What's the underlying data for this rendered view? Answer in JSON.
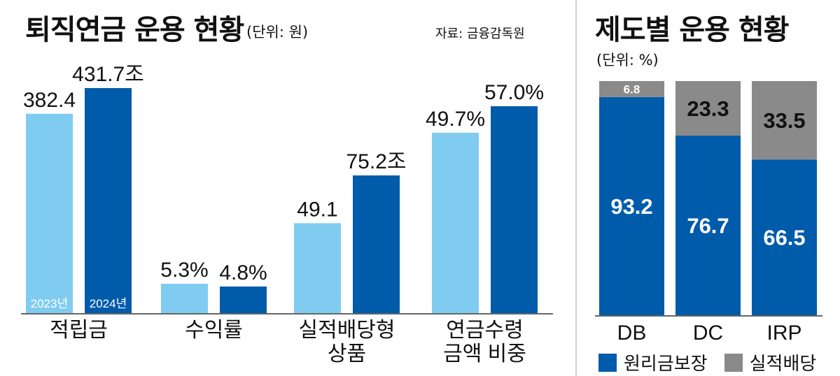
{
  "left_panel": {
    "title": "퇴직연금 운용 현황",
    "unit": "(단위: 원)",
    "source": "자료: 금융감독원"
  },
  "right_panel": {
    "title": "제도별 운용 현황",
    "unit": "(단위: %)"
  },
  "colors": {
    "light_blue": "#80ccf0",
    "dark_blue": "#005bab",
    "gray": "#8a8a8a"
  },
  "chart_data": [
    {
      "type": "bar",
      "title": "퇴직연금 운용 현황",
      "unit": "(단위: 원)",
      "groups": [
        {
          "category": [
            "적립금"
          ],
          "values": [
            382.4,
            431.7
          ],
          "labels": [
            "382.4",
            "431.7조"
          ]
        },
        {
          "category": [
            "수익률"
          ],
          "values": [
            5.3,
            4.8
          ],
          "labels": [
            "5.3%",
            "4.8%"
          ]
        },
        {
          "category": [
            "실적배당형",
            "상품"
          ],
          "values": [
            49.1,
            75.2
          ],
          "labels": [
            "49.1",
            "75.2조"
          ]
        },
        {
          "category": [
            "연금수령",
            "금액 비중"
          ],
          "values": [
            49.7,
            57.0
          ],
          "labels": [
            "49.7%",
            "57.0%"
          ]
        }
      ],
      "series": [
        {
          "name": "2023년",
          "color": "#80ccf0"
        },
        {
          "name": "2024년",
          "color": "#005bab"
        }
      ]
    },
    {
      "type": "bar",
      "stacked": true,
      "title": "제도별 운용 현황",
      "unit": "(단위: %)",
      "categories": [
        "DB",
        "DC",
        "IRP"
      ],
      "series": [
        {
          "name": "원리금보장",
          "color": "#005bab",
          "values": [
            93.2,
            76.7,
            66.5
          ]
        },
        {
          "name": "실적배당",
          "color": "#8a8a8a",
          "values": [
            6.8,
            23.3,
            33.5
          ]
        }
      ],
      "ylim": [
        0,
        100
      ],
      "legend": "bottom"
    }
  ]
}
